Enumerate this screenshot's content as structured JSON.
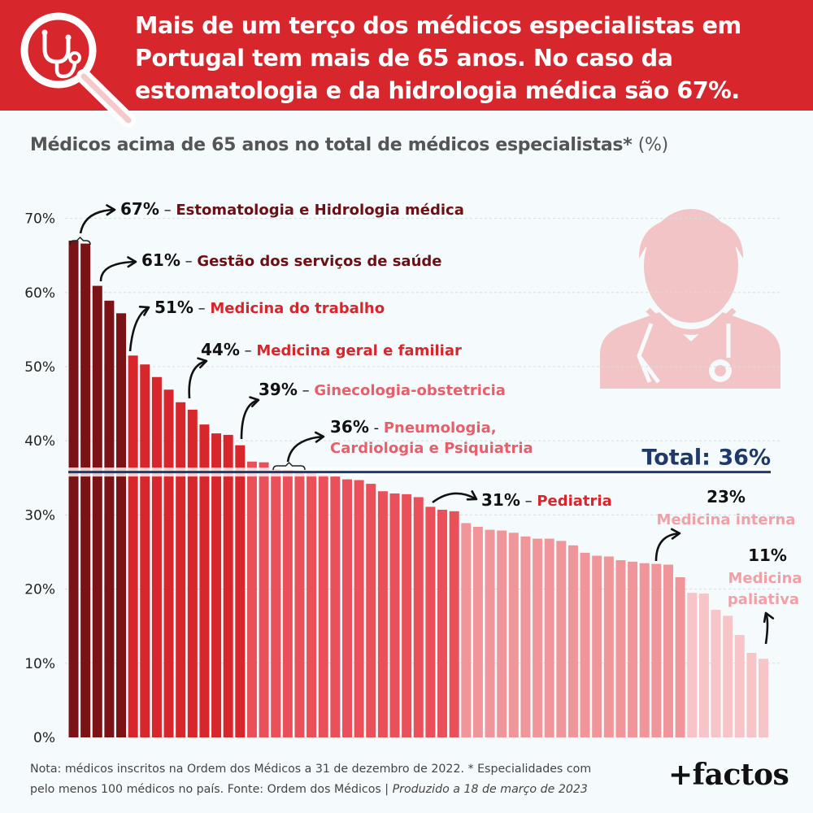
{
  "header": {
    "title": "Mais de um terço dos médicos especialistas em Portugal tem mais de 65 anos. No caso da estomatologia e da hidrologia médica são 67%."
  },
  "subtitle": {
    "main": "Médicos acima de 65 anos no total de médicos especialistas*",
    "unit": "(%)"
  },
  "colors": {
    "header_bg": "#d7262c",
    "bar_dark": "#7b1216",
    "bar_red": "#d7262c",
    "bar_mid": "#e9505a",
    "bar_light": "#f0969a",
    "bar_pale": "#f7c5c7",
    "total_line": "#1f3a68",
    "annotation_dark": "#6b1014",
    "annotation_red": "#d7262c",
    "annotation_pink": "#e65f6a",
    "annotation_light": "#f1a0a6",
    "doctor_icon": "#f2c4c6"
  },
  "icons": {
    "logo": "stethoscope-magnifier-icon",
    "illustration": "doctor-icon"
  },
  "chart_data": {
    "type": "bar",
    "ylim": [
      0,
      70
    ],
    "y_ticks": [
      "0%",
      "10%",
      "20%",
      "30%",
      "40%",
      "50%",
      "60%",
      "70%"
    ],
    "grid": true,
    "values": [
      67,
      66.6,
      60.9,
      58.9,
      57.2,
      51.5,
      50.3,
      48.6,
      46.9,
      45.2,
      44.2,
      42.2,
      41,
      40.8,
      39.4,
      37.2,
      37.1,
      36.2,
      36.1,
      35.9,
      35.8,
      35.4,
      35.2,
      34.8,
      34.7,
      34.2,
      33.2,
      32.9,
      32.8,
      32.4,
      31.1,
      30.7,
      30.5,
      28.9,
      28.4,
      28,
      27.9,
      27.6,
      27.1,
      26.8,
      26.8,
      26.5,
      25.9,
      24.9,
      24.5,
      24.4,
      23.9,
      23.7,
      23.5,
      23.4,
      23.3,
      21.6,
      19.5,
      19.4,
      17.2,
      16.4,
      13.8,
      11.4,
      10.6
    ],
    "total": {
      "value": 36,
      "label": "Total: 36%"
    },
    "annotations": [
      {
        "value": "67%",
        "label": "Estomatologia e Hidrologia médica"
      },
      {
        "value": "61%",
        "label": "Gestão dos serviços de saúde"
      },
      {
        "value": "51%",
        "label": "Medicina do trabalho"
      },
      {
        "value": "44%",
        "label": "Medicina geral e familiar"
      },
      {
        "value": "39%",
        "label": "Ginecologia-obstetricia"
      },
      {
        "value": "36%",
        "label1": "Pneumologia,",
        "label2": "Cardiologia e Psiquiatria"
      },
      {
        "value": "31%",
        "label": "Pediatria"
      },
      {
        "value": "23%",
        "label": "Medicina interna"
      },
      {
        "value": "11%",
        "label1": "Medicina",
        "label2": "paliativa"
      }
    ]
  },
  "footnote": {
    "line1": "Nota: médicos inscritos na Ordem dos Médicos a 31 de dezembro de 2022. * Especialidades com",
    "line2": "pelo menos 100 médicos no país. Fonte: Ordem dos Médicos |",
    "produced": "Produzido a 18 de março de 2023"
  },
  "brand": "+factos"
}
